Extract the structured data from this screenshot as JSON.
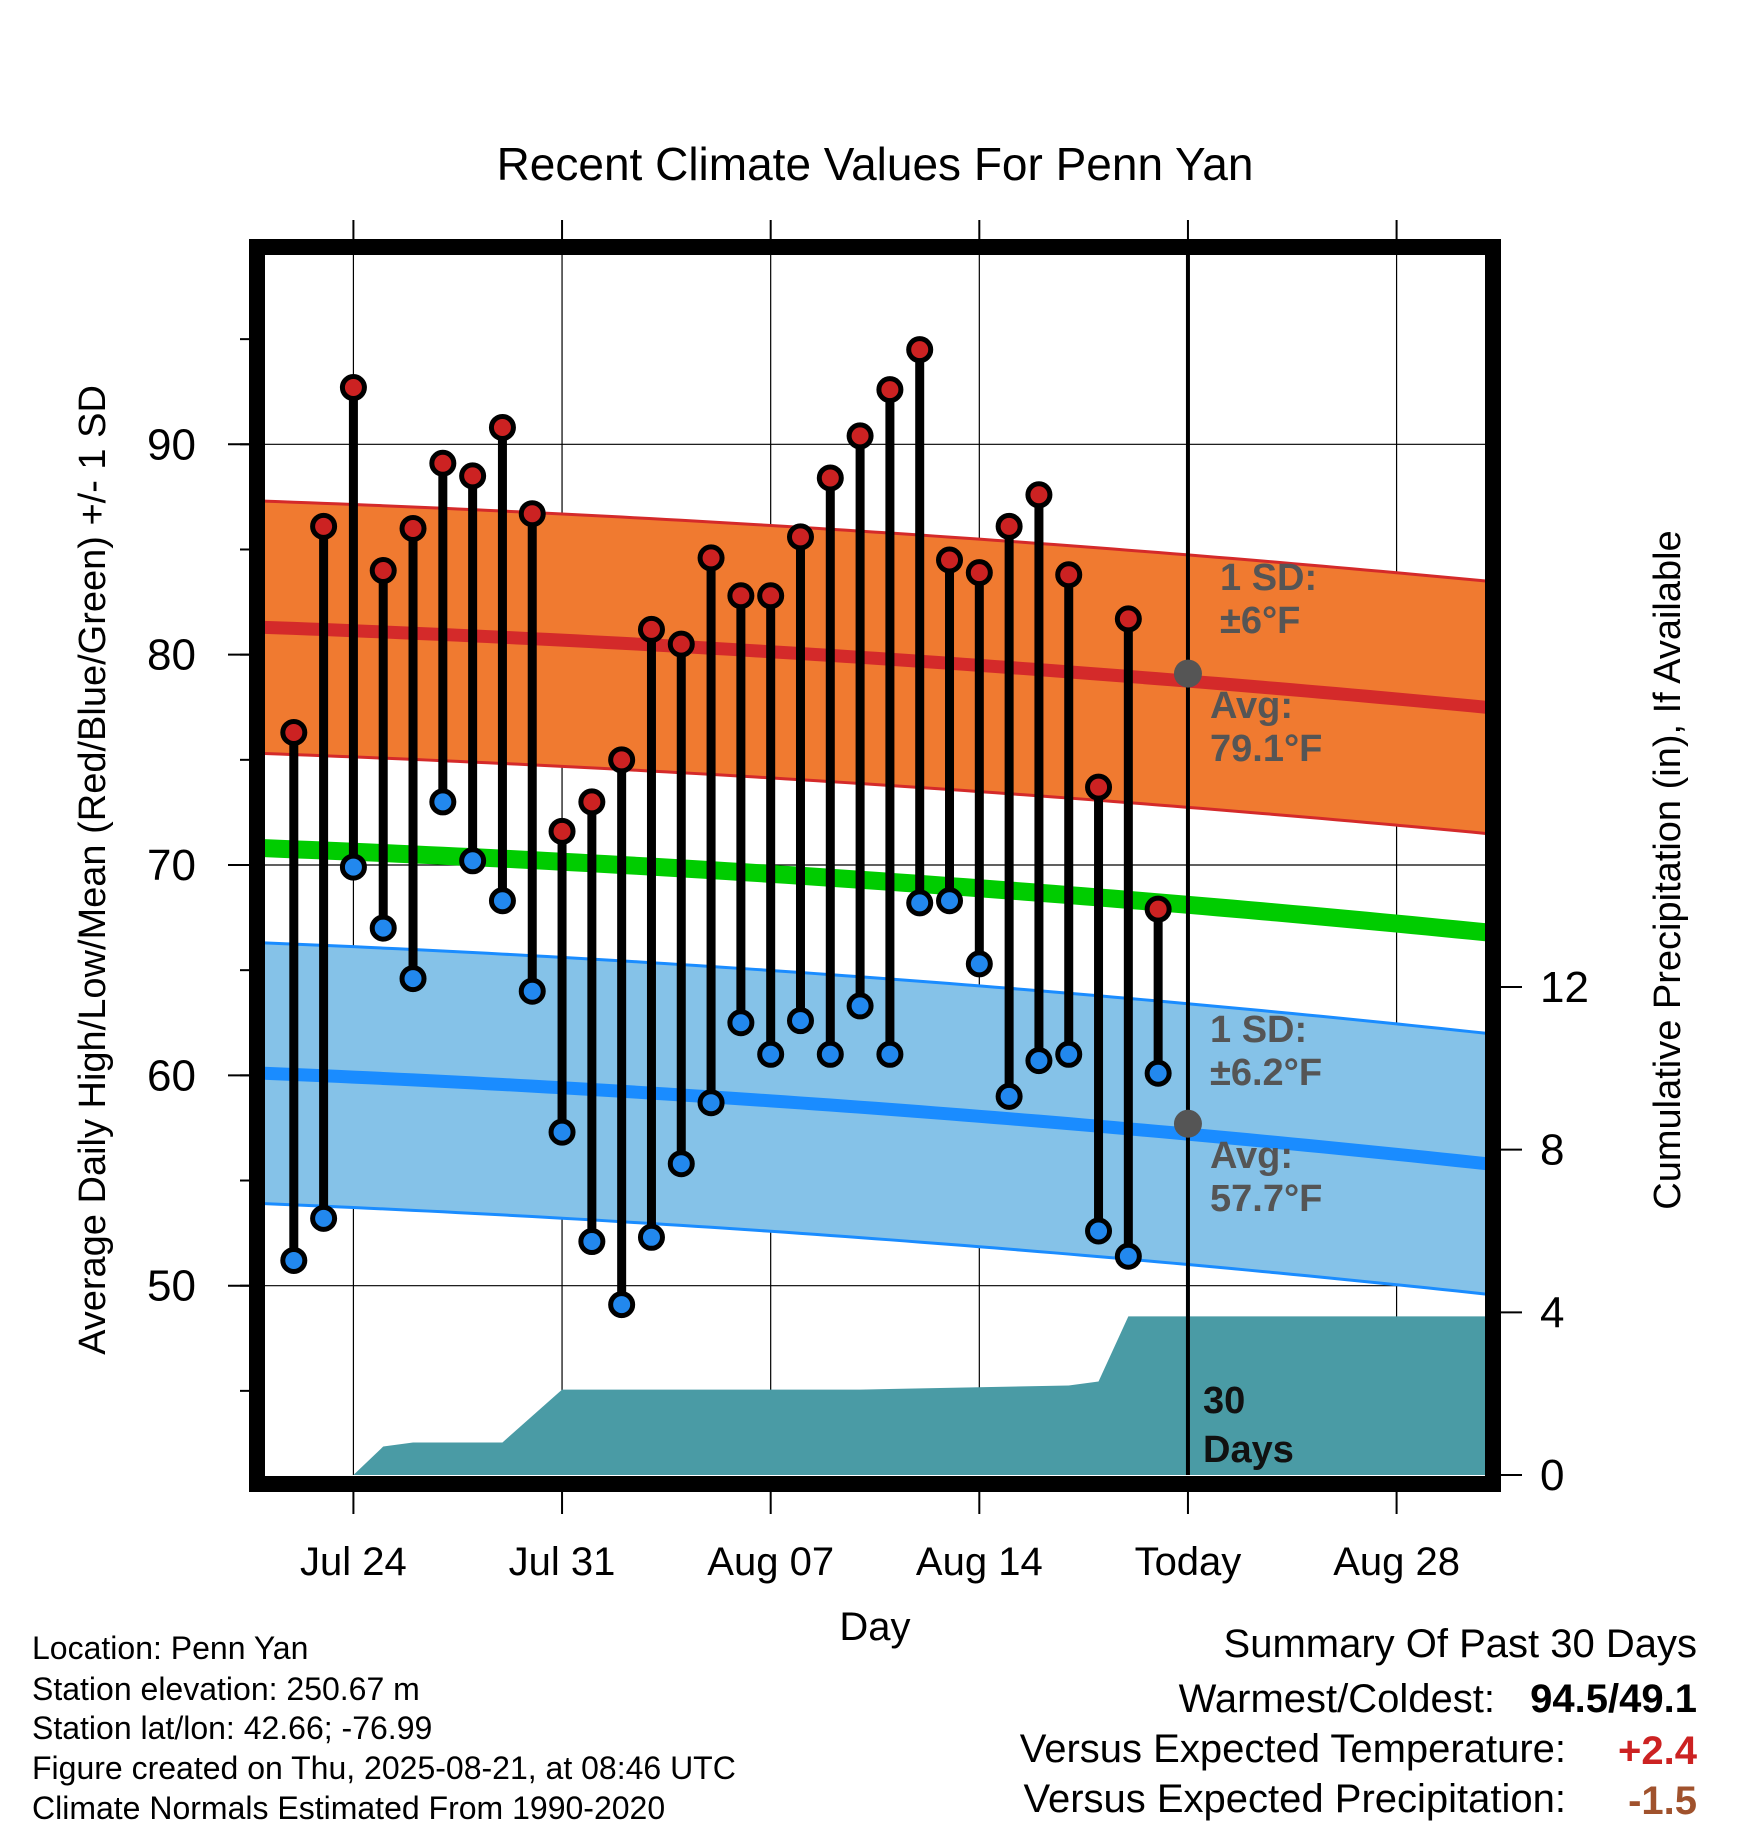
{
  "chart_data": {
    "type": "line",
    "title": "Recent Climate Values For Penn Yan",
    "xlabel": "Day",
    "ylabel": "Average Daily High/Low/Mean (Red/Blue/Green) +/- 1 SD",
    "y2label": "Cumulative Precipitation (in), If Available",
    "ylim": [
      41,
      99
    ],
    "y2lim": [
      0,
      30
    ],
    "yticks": [
      50,
      60,
      70,
      80,
      90
    ],
    "y2ticks": [
      0,
      4,
      8,
      12
    ],
    "xtick_labels": [
      "Jul 24",
      "Jul 31",
      "Aug 07",
      "Aug 14",
      "Today",
      "Aug 28"
    ],
    "xtick_days": [
      3,
      10,
      17,
      24,
      31,
      38
    ],
    "xlim_days": [
      0,
      41
    ],
    "today_day": 31,
    "grid": true,
    "days": [
      1,
      2,
      3,
      4,
      5,
      6,
      7,
      8,
      9,
      10,
      11,
      12,
      13,
      14,
      15,
      16,
      17,
      18,
      19,
      20,
      21,
      22,
      23,
      24,
      25,
      26,
      27,
      28,
      29,
      30
    ],
    "highs": [
      76.3,
      86.1,
      92.7,
      84,
      86,
      89.1,
      88.5,
      90.8,
      86.7,
      71.6,
      73,
      75,
      81.2,
      80.5,
      84.6,
      82.8,
      82.8,
      85.6,
      88.4,
      90.4,
      92.6,
      94.5,
      84.5,
      83.9,
      86.1,
      87.6,
      83.8,
      73.7,
      81.7,
      67.9
    ],
    "lows": [
      51.2,
      53.2,
      69.9,
      67,
      64.6,
      73,
      70.2,
      68.3,
      64,
      57.3,
      52.1,
      49.1,
      52.3,
      55.8,
      58.7,
      62.5,
      61,
      62.6,
      61,
      63.3,
      61,
      68.2,
      68.3,
      65.3,
      59,
      60.7,
      61,
      52.6,
      51.4,
      60.1
    ],
    "normals": {
      "high_mean_start": 81.3,
      "high_mean_end": 77.5,
      "high_sd": 6.0,
      "low_mean_start": 60.1,
      "low_mean_end": 55.8,
      "low_sd": 6.2,
      "mean_start": 70.8,
      "mean_end": 66.8
    },
    "today_avg_high": 79.1,
    "today_avg_low": 57.7,
    "precip_cumulative": {
      "days": [
        0,
        3,
        4,
        5,
        8,
        10,
        20,
        27,
        28,
        29,
        41
      ],
      "values": [
        0,
        0,
        0.7,
        0.8,
        0.8,
        2.1,
        2.1,
        2.2,
        2.3,
        3.9,
        3.9
      ]
    },
    "colors": {
      "high": "#d42a2a",
      "high_band": "#f07a30",
      "high_band_edge": "#d42a2a",
      "low": "#1a8cff",
      "low_band": "#85c2e8",
      "low_band_edge": "#1a8cff",
      "mean": "#00cc00",
      "precip": "#4a9ba5",
      "marker_high": "#cc2222",
      "marker_low": "#2288ee",
      "today_marker": "#555555"
    }
  },
  "annotations": {
    "high_sd_line1": "1 SD:",
    "high_sd_line2": "±6°F",
    "high_avg_line1": "Avg:",
    "high_avg_line2": "79.1°F",
    "low_sd_line1": "1 SD:",
    "low_sd_line2": "±6.2°F",
    "low_avg_line1": "Avg:",
    "low_avg_line2": "57.7°F",
    "precip_line1": "30",
    "precip_line2": "Days"
  },
  "station_info": {
    "location": "Location: Penn Yan",
    "elevation": "Station elevation: 250.67 m",
    "latlon": "Station lat/lon: 42.66; -76.99",
    "created": "Figure created on Thu, 2025-08-21, at 08:46 UTC",
    "normals": "Climate Normals Estimated From 1990-2020"
  },
  "summary": {
    "title": "Summary Of Past 30 Days",
    "warmest_label": "Warmest/Coldest:",
    "warmest_value": "94.5/49.1",
    "temp_label": "Versus Expected Temperature:",
    "temp_value": "+2.4",
    "temp_color": "#cc2222",
    "precip_label": "Versus Expected Precipitation:",
    "precip_value": "-1.5",
    "precip_color": "#a0522d"
  }
}
